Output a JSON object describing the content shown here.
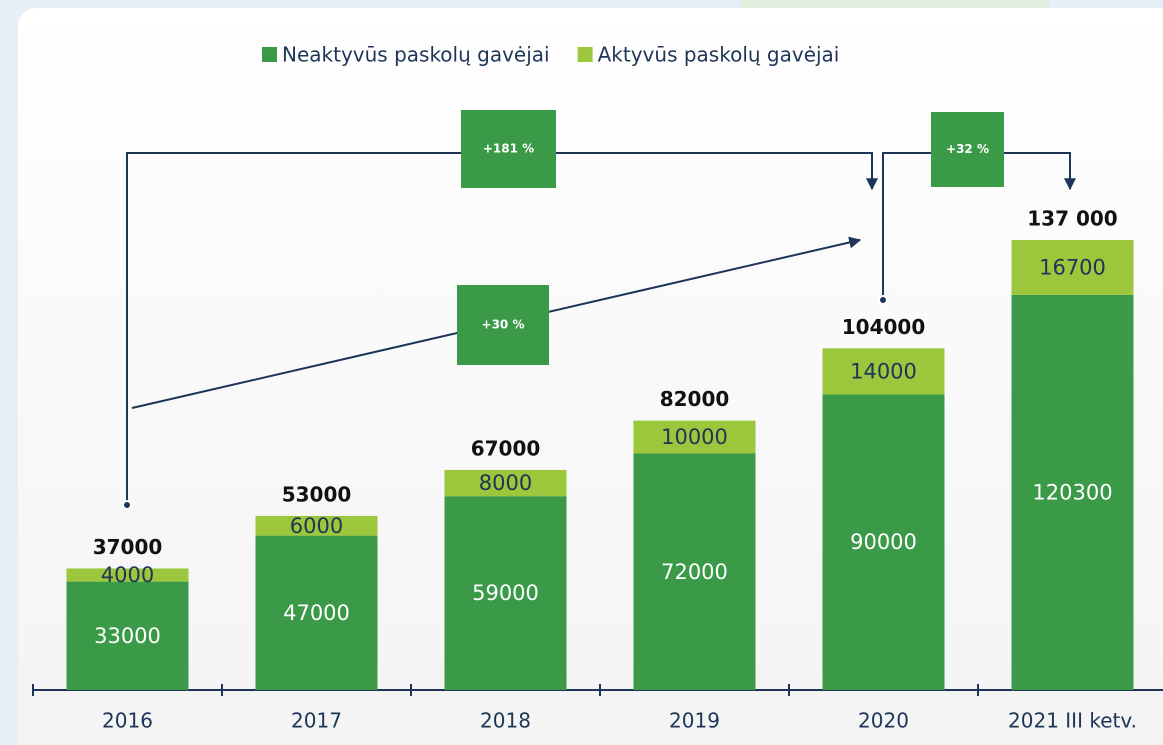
{
  "chart_data": {
    "type": "stacked_bar",
    "categories": [
      "2016",
      "2017",
      "2018",
      "2019",
      "2020",
      "2021 III ketv."
    ],
    "series": [
      {
        "name": "Neaktyvūs paskolų gavėjai",
        "color": "#3a9a47",
        "values": [
          33000,
          47000,
          59000,
          72000,
          90000,
          120300
        ]
      },
      {
        "name": "Aktyvūs paskolų gavėjai",
        "color": "#9cc63b",
        "values": [
          4000,
          6000,
          8000,
          10000,
          14000,
          16700
        ]
      }
    ],
    "totals": {
      "values": [
        37000,
        53000,
        67000,
        82000,
        104000,
        137000
      ],
      "value_labels": [
        "37000",
        "53000",
        "67000",
        "82000",
        "104000",
        "137 000"
      ]
    },
    "annotations": [
      "+181 %",
      "+30 %",
      "+32 %"
    ]
  }
}
